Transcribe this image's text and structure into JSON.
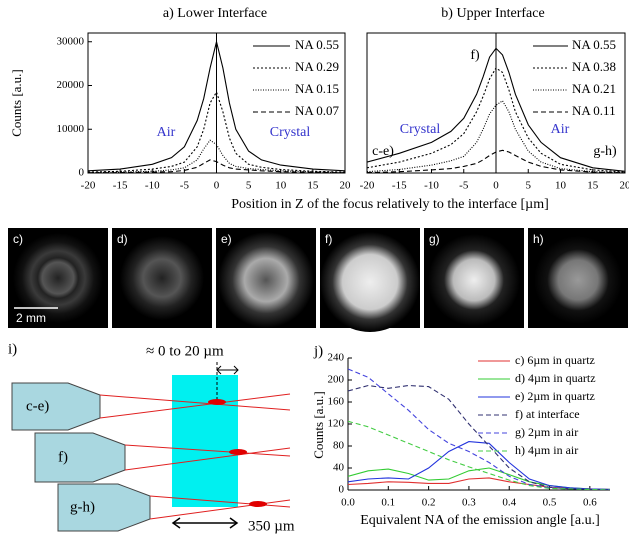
{
  "chart_data": [
    {
      "type": "line",
      "title": "a) Lower Interface",
      "ylabel": "Counts [a.u.]",
      "xlabel": "Position in Z of the focus relatively to the interface [µm]",
      "x": [
        -20,
        -15,
        -10,
        -7,
        -5,
        -3,
        -2,
        -1,
        0,
        1,
        2,
        3,
        5,
        7,
        10,
        15,
        20
      ],
      "xlim": [
        -20,
        20
      ],
      "xticks": [
        -20,
        -15,
        -10,
        -5,
        0,
        5,
        10,
        15,
        20
      ],
      "ylim": [
        0,
        32000
      ],
      "yticks": [
        0,
        10000,
        20000,
        30000
      ],
      "vline": 0,
      "annotations": [
        {
          "text": "Air",
          "color": "#3333cc"
        },
        {
          "text": "Crystal",
          "color": "#3333cc"
        }
      ],
      "series": [
        {
          "name": "NA 0.55",
          "color": "#000000",
          "dash": "solid",
          "values": [
            500,
            900,
            2000,
            3500,
            6000,
            12000,
            17000,
            24000,
            30000,
            24000,
            16000,
            10000,
            5000,
            3000,
            1800,
            900,
            500
          ]
        },
        {
          "name": "NA 0.29",
          "color": "#000000",
          "dash": "dotted",
          "values": [
            200,
            400,
            900,
            1500,
            2500,
            6000,
            10000,
            16000,
            18500,
            14000,
            8000,
            4500,
            2000,
            1300,
            800,
            400,
            200
          ]
        },
        {
          "name": "NA 0.15",
          "color": "#000000",
          "dash": "finedotted",
          "values": [
            100,
            200,
            400,
            700,
            1200,
            3000,
            5500,
            7500,
            6500,
            4000,
            2200,
            1500,
            1000,
            800,
            500,
            250,
            100
          ]
        },
        {
          "name": "NA 0.07",
          "color": "#000000",
          "dash": "dashed",
          "values": [
            50,
            100,
            200,
            300,
            600,
            1300,
            2200,
            3000,
            2600,
            1800,
            1200,
            900,
            700,
            500,
            300,
            150,
            50
          ]
        }
      ]
    },
    {
      "type": "line",
      "title": "b) Upper Interface",
      "x": [
        -20,
        -15,
        -10,
        -7,
        -5,
        -3,
        -2,
        -1,
        0,
        1,
        2,
        3,
        5,
        7,
        10,
        15,
        20
      ],
      "xlim": [
        -20,
        20
      ],
      "xticks": [
        -20,
        -15,
        -10,
        -5,
        0,
        5,
        10,
        15,
        20
      ],
      "ylim": [
        0,
        32000
      ],
      "vline": 0,
      "annotations": [
        {
          "text": "f)",
          "color": "#000000"
        },
        {
          "text": "Crystal",
          "color": "#3333cc"
        },
        {
          "text": "Air",
          "color": "#3333cc"
        },
        {
          "text": "c-e)",
          "color": "#000000"
        },
        {
          "text": "g-h)",
          "color": "#000000"
        }
      ],
      "series": [
        {
          "name": "NA 0.55",
          "color": "#000000",
          "dash": "solid",
          "values": [
            2500,
            4500,
            7000,
            9500,
            12500,
            18000,
            22000,
            26500,
            28500,
            27000,
            23000,
            18000,
            11000,
            7000,
            3500,
            1200,
            400
          ]
        },
        {
          "name": "NA 0.38",
          "color": "#000000",
          "dash": "dotted",
          "values": [
            1200,
            2500,
            4500,
            6500,
            9000,
            14000,
            17500,
            21500,
            24000,
            23000,
            19000,
            14000,
            8000,
            4500,
            2000,
            700,
            200
          ]
        },
        {
          "name": "NA 0.21",
          "color": "#000000",
          "dash": "finedotted",
          "values": [
            300,
            800,
            1800,
            2800,
            3800,
            7000,
            10000,
            13500,
            15500,
            16500,
            14000,
            10000,
            5000,
            2500,
            1000,
            300,
            100
          ]
        },
        {
          "name": "NA 0.11",
          "color": "#000000",
          "dash": "dashed",
          "values": [
            100,
            300,
            700,
            1000,
            1500,
            2200,
            3000,
            4000,
            4800,
            5200,
            4800,
            4000,
            2500,
            1500,
            700,
            200,
            50
          ]
        }
      ]
    },
    {
      "type": "line",
      "ylabel": "Counts [a.u.]",
      "xlabel": "Equivalent NA of the emission angle [a.u.]",
      "x": [
        0,
        0.05,
        0.1,
        0.15,
        0.2,
        0.25,
        0.3,
        0.35,
        0.4,
        0.45,
        0.5,
        0.55,
        0.6,
        0.65
      ],
      "xlim": [
        0,
        0.65
      ],
      "xticks": [
        {
          "value": 0,
          "label": "0.0"
        },
        0.1,
        0.2,
        0.3,
        0.4,
        0.5,
        0.6
      ],
      "ylim": [
        0,
        240
      ],
      "yticks": [
        0,
        40,
        80,
        120,
        160,
        200,
        240
      ],
      "series": [
        {
          "name": "c) 6µm in quartz",
          "color": "#e03030",
          "dash": "solid",
          "values": [
            10,
            12,
            15,
            14,
            12,
            12,
            20,
            22,
            15,
            10,
            5,
            3,
            2,
            1
          ]
        },
        {
          "name": "d) 4µm in quartz",
          "color": "#33cc33",
          "dash": "solid",
          "values": [
            25,
            35,
            38,
            30,
            18,
            20,
            35,
            40,
            28,
            15,
            8,
            4,
            2,
            1
          ]
        },
        {
          "name": "e) 2µm in quartz",
          "color": "#2233dd",
          "dash": "solid",
          "values": [
            15,
            20,
            22,
            20,
            40,
            70,
            88,
            85,
            50,
            20,
            8,
            4,
            2,
            1
          ]
        },
        {
          "name": "f) at interface",
          "color": "#303070",
          "dash": "dashed",
          "values": [
            180,
            190,
            185,
            190,
            188,
            165,
            120,
            80,
            40,
            15,
            5,
            2,
            1,
            0
          ]
        },
        {
          "name": "g) 2µm in air",
          "color": "#4444dd",
          "dash": "dashed",
          "values": [
            220,
            205,
            175,
            145,
            110,
            85,
            70,
            50,
            25,
            10,
            4,
            2,
            1,
            0
          ]
        },
        {
          "name": "h) 4µm in air",
          "color": "#44cc44",
          "dash": "dashed",
          "values": [
            125,
            115,
            100,
            85,
            70,
            55,
            42,
            30,
            18,
            8,
            3,
            2,
            1,
            0
          ]
        }
      ]
    }
  ],
  "images": {
    "labels": [
      "c)",
      "d)",
      "e)",
      "f)",
      "g)",
      "h)"
    ],
    "scale_bar": "2 mm"
  },
  "diagram": {
    "label": "i)",
    "gap": "≈ 0 to 20 µm",
    "objectives": [
      "c-e)",
      "f)",
      "g-h)"
    ],
    "width": "350 µm",
    "panel": "j)"
  }
}
